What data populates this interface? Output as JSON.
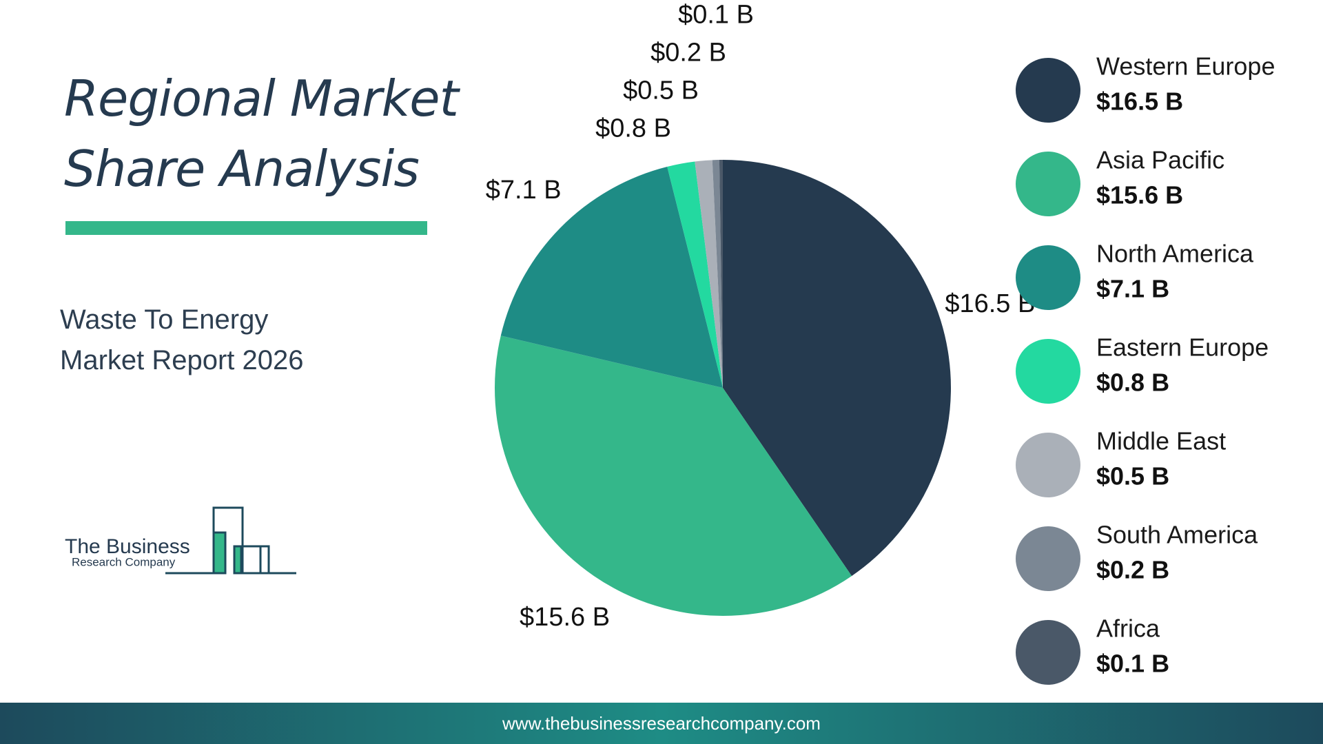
{
  "chart_data": {
    "type": "pie",
    "title": "Regional Market Share Analysis",
    "subtitle": "Waste To Energy Market Report 2026",
    "categories": [
      "Western Europe",
      "Asia Pacific",
      "North America",
      "Eastern Europe",
      "Middle East",
      "South America",
      "Africa"
    ],
    "values": [
      16.5,
      15.6,
      7.1,
      0.8,
      0.5,
      0.2,
      0.1
    ],
    "value_labels": [
      "$16.5 B",
      "$15.6 B",
      "$7.1 B",
      "$0.8 B",
      "$0.5 B",
      "$0.2 B",
      "$0.1 B"
    ],
    "colors": [
      "#253a4f",
      "#34b78a",
      "#1e8c85",
      "#23d9a0",
      "#aab0b8",
      "#7b8794",
      "#4a5868"
    ]
  },
  "logo": {
    "line1": "The Business",
    "line2": "Research Company"
  },
  "footer": {
    "url": "www.thebusinessresearchcompany.com"
  }
}
